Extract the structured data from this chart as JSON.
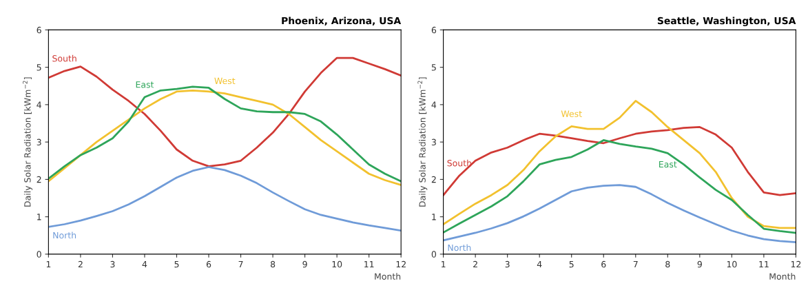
{
  "chart_data": [
    {
      "type": "line",
      "title": "Phoenix, Arizona, USA",
      "xlabel": "Month",
      "ylabel": "Daily Solar Radiation [kWm$^{−2}$]",
      "x": [
        1,
        1.5,
        2,
        2.5,
        3,
        3.5,
        4,
        4.5,
        5,
        5.5,
        6,
        6.5,
        7,
        7.5,
        8,
        8.5,
        9,
        9.5,
        10,
        10.5,
        11,
        11.5,
        12
      ],
      "xlim": [
        1,
        12
      ],
      "xticks": [
        1,
        2,
        3,
        4,
        5,
        6,
        7,
        8,
        9,
        10,
        11,
        12
      ],
      "ylim": [
        0,
        6
      ],
      "yticks": [
        0,
        1,
        2,
        3,
        4,
        5,
        6
      ],
      "grid": false,
      "legend": false,
      "marker": "none",
      "line_style": "solid",
      "series": [
        {
          "name": "South",
          "color": "#d03a35",
          "values": [
            4.72,
            4.9,
            5.02,
            4.75,
            4.4,
            4.1,
            3.75,
            3.3,
            2.8,
            2.5,
            2.35,
            2.4,
            2.5,
            2.85,
            3.25,
            3.75,
            4.35,
            4.85,
            5.25,
            5.25,
            5.1,
            4.95,
            4.78
          ]
        },
        {
          "name": "West",
          "color": "#f2c12e",
          "values": [
            1.95,
            2.3,
            2.65,
            3.0,
            3.3,
            3.6,
            3.9,
            4.15,
            4.35,
            4.38,
            4.35,
            4.3,
            4.2,
            4.1,
            4.0,
            3.75,
            3.4,
            3.05,
            2.75,
            2.45,
            2.15,
            1.98,
            1.85
          ]
        },
        {
          "name": "East",
          "color": "#2ea55a",
          "values": [
            2.02,
            2.35,
            2.65,
            2.85,
            3.1,
            3.55,
            4.2,
            4.38,
            4.42,
            4.48,
            4.45,
            4.15,
            3.9,
            3.82,
            3.8,
            3.8,
            3.75,
            3.55,
            3.2,
            2.8,
            2.4,
            2.15,
            1.95
          ]
        },
        {
          "name": "North",
          "color": "#6f9bd8",
          "values": [
            0.73,
            0.8,
            0.9,
            1.02,
            1.15,
            1.33,
            1.55,
            1.8,
            2.05,
            2.23,
            2.33,
            2.25,
            2.1,
            1.9,
            1.65,
            1.42,
            1.2,
            1.05,
            0.95,
            0.85,
            0.77,
            0.7,
            0.63
          ]
        }
      ]
    },
    {
      "type": "line",
      "title": "Seattle, Washington, USA",
      "xlabel": "Month",
      "ylabel": "Daily Solar Radiation [kWm$^{−2}$]",
      "x": [
        1,
        1.5,
        2,
        2.5,
        3,
        3.5,
        4,
        4.5,
        5,
        5.5,
        6,
        6.5,
        7,
        7.5,
        8,
        8.5,
        9,
        9.5,
        10,
        10.5,
        11,
        11.5,
        12
      ],
      "xlim": [
        1,
        12
      ],
      "xticks": [
        1,
        2,
        3,
        4,
        5,
        6,
        7,
        8,
        9,
        10,
        11,
        12
      ],
      "ylim": [
        0,
        6
      ],
      "yticks": [
        0,
        1,
        2,
        3,
        4,
        5,
        6
      ],
      "grid": false,
      "legend": false,
      "marker": "none",
      "line_style": "solid",
      "series": [
        {
          "name": "South",
          "color": "#d03a35",
          "values": [
            1.58,
            2.1,
            2.5,
            2.72,
            2.85,
            3.05,
            3.22,
            3.17,
            3.1,
            3.03,
            2.97,
            3.1,
            3.22,
            3.28,
            3.32,
            3.38,
            3.4,
            3.2,
            2.85,
            2.2,
            1.65,
            1.58,
            1.63
          ]
        },
        {
          "name": "West",
          "color": "#f2c12e",
          "values": [
            0.8,
            1.08,
            1.35,
            1.58,
            1.85,
            2.25,
            2.75,
            3.15,
            3.42,
            3.35,
            3.35,
            3.65,
            4.1,
            3.8,
            3.4,
            3.05,
            2.7,
            2.2,
            1.5,
            1.0,
            0.75,
            0.7,
            0.7
          ]
        },
        {
          "name": "East",
          "color": "#2ea55a",
          "values": [
            0.58,
            0.82,
            1.05,
            1.28,
            1.55,
            1.95,
            2.4,
            2.52,
            2.6,
            2.8,
            3.05,
            2.95,
            2.88,
            2.82,
            2.7,
            2.4,
            2.05,
            1.72,
            1.45,
            1.05,
            0.68,
            0.62,
            0.57
          ]
        },
        {
          "name": "North",
          "color": "#6f9bd8",
          "values": [
            0.37,
            0.47,
            0.57,
            0.69,
            0.83,
            1.01,
            1.22,
            1.45,
            1.68,
            1.78,
            1.83,
            1.85,
            1.8,
            1.6,
            1.37,
            1.17,
            0.98,
            0.8,
            0.63,
            0.5,
            0.4,
            0.35,
            0.32
          ]
        }
      ]
    }
  ]
}
